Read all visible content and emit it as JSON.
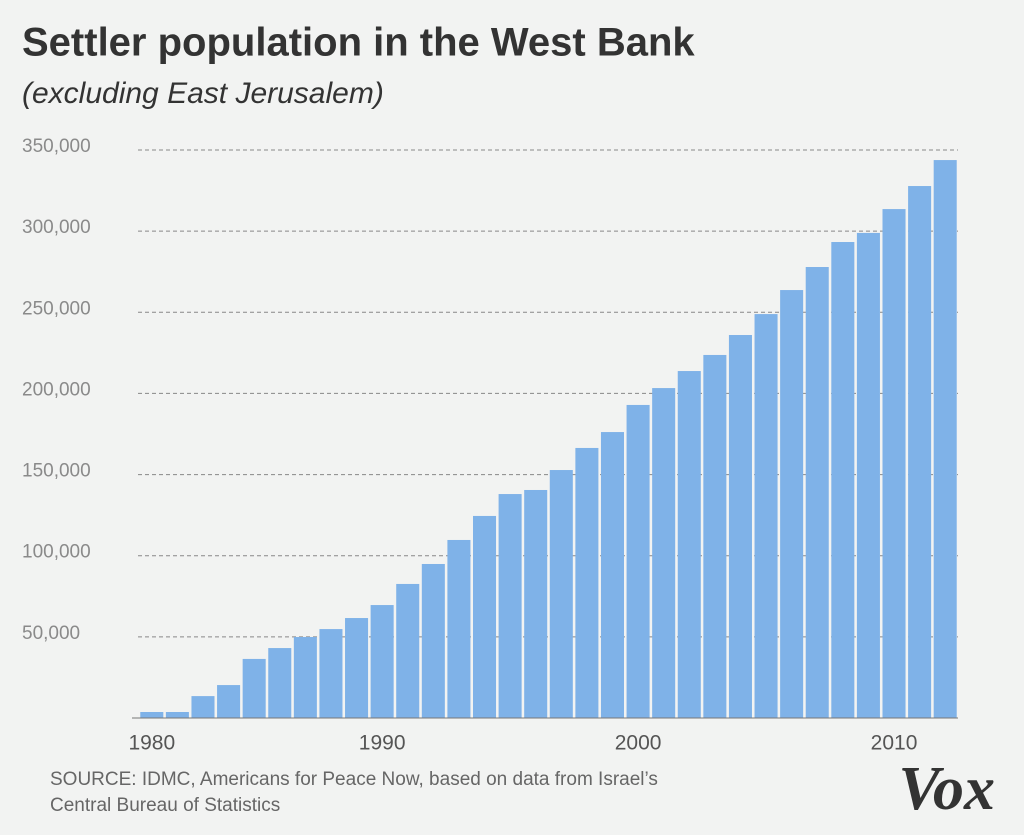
{
  "chart_data": {
    "type": "bar",
    "title": "Settler population in the West Bank",
    "subtitle": "(excluding East Jerusalem)",
    "source_line1": "SOURCE: IDMC, Americans for Peace Now, based on data from Israel’s",
    "source_line2": "Central  Bureau of Statistics",
    "logo": "Vox",
    "categories": [
      "1980",
      null,
      null,
      null,
      null,
      null,
      null,
      null,
      null,
      "1990",
      null,
      null,
      null,
      null,
      null,
      null,
      null,
      null,
      null,
      "2000",
      null,
      null,
      null,
      null,
      null,
      null,
      null,
      null,
      null,
      "2010",
      null,
      null
    ],
    "values": [
      3700,
      3700,
      13500,
      20300,
      36400,
      43100,
      49900,
      54800,
      61600,
      69600,
      82600,
      94900,
      109700,
      124500,
      138000,
      140500,
      152800,
      166400,
      176200,
      192900,
      203300,
      213800,
      223700,
      236000,
      248900,
      263700,
      277900,
      293300,
      298900,
      313600,
      327800,
      343800
    ],
    "color": "#7fb2e8",
    "ylim": [
      0,
      350000
    ],
    "yticks": [
      {
        "value": 50000,
        "label": "50,000"
      },
      {
        "value": 100000,
        "label": "100,000"
      },
      {
        "value": 150000,
        "label": "150,000"
      },
      {
        "value": 200000,
        "label": "200,000"
      },
      {
        "value": 250000,
        "label": "250,000"
      },
      {
        "value": 300000,
        "label": "300,000"
      },
      {
        "value": 350000,
        "label": "350,000"
      }
    ],
    "grid": true
  }
}
